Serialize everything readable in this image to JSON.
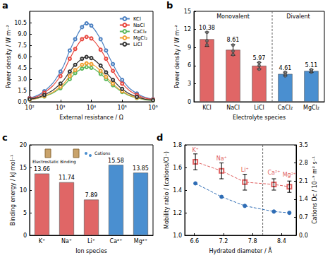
{
  "chart_data": [
    {
      "type": "line",
      "title": "a",
      "xlabel": "External resistance / Ω",
      "ylabel": "Power density / W m⁻²",
      "log": "x",
      "xlim": [
        100,
        1000000
      ],
      "xticks": [
        {
          "value": 100,
          "label": "10²"
        },
        {
          "value": 1000,
          "label": "10³"
        },
        {
          "value": 10000,
          "label": "10⁴"
        },
        {
          "value": 100000,
          "label": "10⁵"
        },
        {
          "value": 1000000,
          "label": "10⁶"
        }
      ],
      "ylim": [
        0,
        12
      ],
      "yticks": [
        {
          "value": 0,
          "label": "0.0"
        },
        1.5,
        {
          "value": 3,
          "label": "3.0"
        },
        4.5,
        {
          "value": 6,
          "label": "6.0"
        },
        7.5,
        {
          "value": 9,
          "label": "9.0"
        },
        10.5
      ],
      "legend": "upper right",
      "marker": "open_circle",
      "line_style": "solid",
      "x": [
        100,
        300,
        1000,
        2000,
        3000,
        5000,
        7000,
        10000,
        20000,
        30000,
        50000,
        100000,
        300000,
        1000000
      ],
      "series": [
        {
          "name": "KCl",
          "color": "#4a7fc1",
          "values": [
            0.5,
            1.4,
            4.0,
            6.8,
            8.3,
            9.9,
            10.4,
            10.1,
            8.3,
            6.8,
            5.0,
            2.9,
            1.1,
            0.35
          ]
        },
        {
          "name": "NaCl",
          "color": "#e8473f",
          "values": [
            0.45,
            1.2,
            3.4,
            5.7,
            7.0,
            8.3,
            8.6,
            8.4,
            6.9,
            5.7,
            4.1,
            2.4,
            0.9,
            0.3
          ]
        },
        {
          "name": "CaCl₂",
          "color": "#5cb85c",
          "values": [
            0.3,
            0.7,
            1.8,
            3.0,
            3.8,
            4.4,
            4.6,
            4.5,
            3.7,
            3.0,
            2.2,
            1.3,
            0.5,
            0.15
          ]
        },
        {
          "name": "MgCl₂",
          "color": "#f0a030",
          "values": [
            0.3,
            0.75,
            2.0,
            3.4,
            4.2,
            4.9,
            5.1,
            5.0,
            4.1,
            3.3,
            2.4,
            1.4,
            0.55,
            0.2
          ]
        },
        {
          "name": "LiCl",
          "color": "#333333",
          "values": [
            0.35,
            0.9,
            2.4,
            4.0,
            4.9,
            5.7,
            5.95,
            5.8,
            4.8,
            3.9,
            2.9,
            1.7,
            0.65,
            0.2
          ]
        }
      ]
    },
    {
      "type": "bar",
      "title": "b",
      "xlabel": "Electrolyte species",
      "ylabel": "Power density / W m⁻²",
      "categories": [
        "KCl",
        "NaCl",
        "LiCl",
        "CaCl₂",
        "MgCl₂"
      ],
      "values": [
        10.38,
        8.61,
        5.97,
        4.61,
        5.11
      ],
      "errors": [
        1.2,
        0.9,
        0.55,
        0.3,
        0.25
      ],
      "points": [
        [
          9.4,
          10.1,
          11.5
        ],
        [
          7.8,
          8.4,
          9.4
        ],
        [
          5.4,
          6.0,
          6.5
        ],
        [
          4.3,
          4.6,
          4.9
        ],
        [
          4.9,
          5.1,
          5.3
        ]
      ],
      "colors": [
        "#e06666",
        "#e06666",
        "#e06666",
        "#4a8fd0",
        "#4a8fd0"
      ],
      "ylim": [
        0,
        15
      ],
      "yticks": [
        0,
        3,
        6,
        9,
        12,
        15
      ],
      "data_labels": true,
      "annotations": [
        "Monovalent",
        "Divalent"
      ]
    },
    {
      "type": "bar",
      "title": "c",
      "xlabel": "Ion species",
      "ylabel": "Binding energy / kJ mol⁻¹",
      "categories": [
        "K⁺",
        "Na⁺",
        "Li⁺",
        "Ca²⁺",
        "Mg²⁺"
      ],
      "values": [
        13.66,
        11.74,
        7.89,
        15.58,
        13.85
      ],
      "colors": [
        "#e06666",
        "#e06666",
        "#e06666",
        "#4a8fd0",
        "#4a8fd0"
      ],
      "ylim": [
        0,
        20
      ],
      "yticks": [
        0,
        5,
        10,
        15,
        20
      ],
      "data_labels": true,
      "annotations": [
        "Electrostatic Binding",
        "Cations"
      ]
    },
    {
      "type": "scatter",
      "title": "d",
      "xlabel": "Hydrated diameter / Å",
      "ylabel": "Mobility ratio / (cations/Cl⁻)",
      "y2label": "Cations Dc / 10⁻⁹ m² s⁻¹",
      "x": [
        6.62,
        7.16,
        7.64,
        8.24,
        8.56
      ],
      "xlim": [
        6.4,
        8.7
      ],
      "xticks": [
        6.6,
        7.2,
        7.8,
        8.4
      ],
      "ylim": [
        1,
        1.8
      ],
      "yticks": [
        {
          "value": 1,
          "label": "1.0"
        },
        1.2,
        1.4,
        1.6,
        1.8
      ],
      "y2lim": [
        0,
        3.5
      ],
      "y2ticks": [
        {
          "value": 0,
          "label": "0.0"
        },
        0.7,
        1.4,
        2.1,
        2.8,
        3.5
      ],
      "series": [
        {
          "color": "#e06060",
          "marker": "open_square",
          "line_style": "dashed",
          "values": [
            1.65,
            1.57,
            1.47,
            1.45,
            1.43
          ],
          "errors": [
            0.07,
            0.07,
            0.07,
            0.05,
            0.05
          ],
          "point_labels": [
            "K⁺",
            "Na⁺",
            "Li⁺",
            "Ca²⁺",
            "Mg²⁺"
          ]
        },
        {
          "color": "#2f6db5",
          "marker": "circle",
          "line_style": "dashed",
          "axis": "y2",
          "values": [
            2.01,
            1.49,
            1.14,
            0.92,
            0.87
          ]
        }
      ]
    }
  ]
}
